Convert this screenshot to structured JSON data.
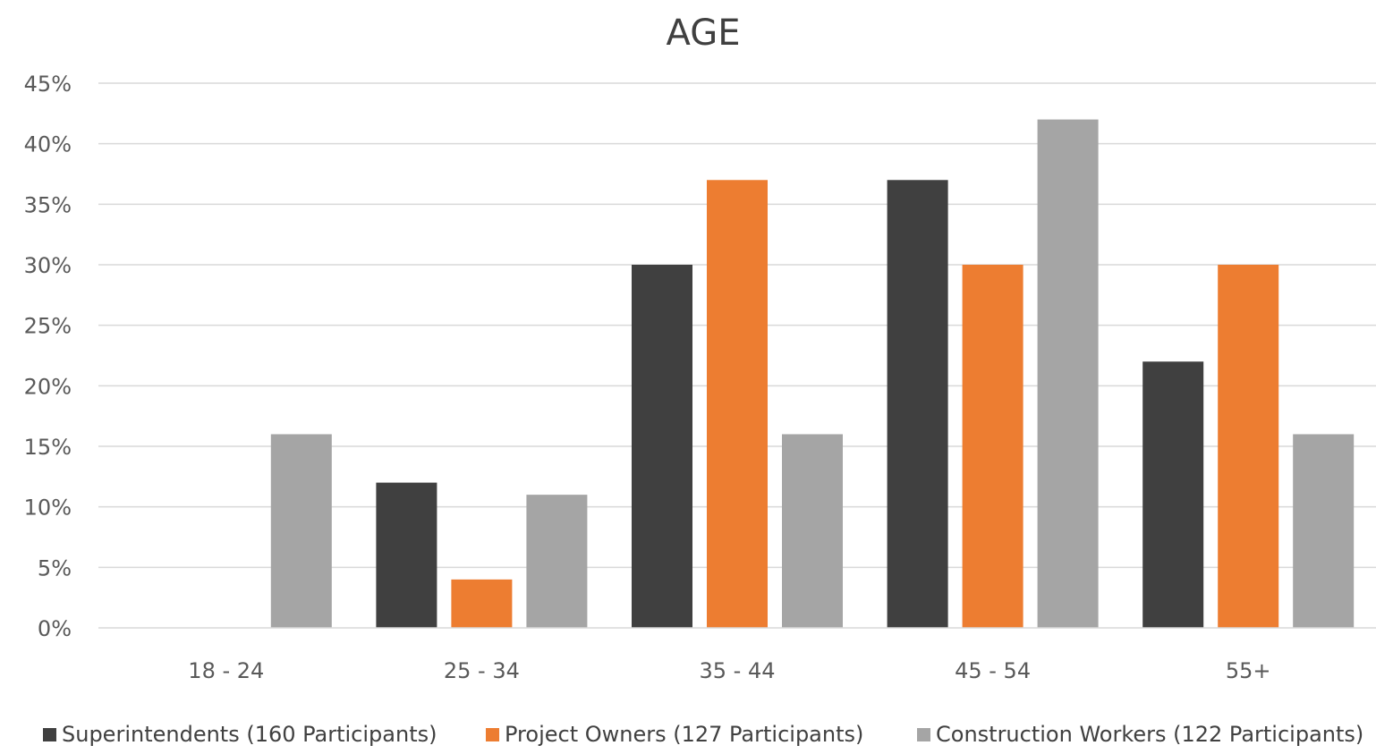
{
  "chart_data": {
    "type": "bar",
    "title": "AGE",
    "xlabel": "",
    "ylabel": "",
    "categories": [
      "18 - 24",
      "25 - 34",
      "35 - 44",
      "45 - 54",
      "55+"
    ],
    "series": [
      {
        "name": "Superintendents (160 Participants)",
        "color": "#404040",
        "values": [
          0,
          12,
          30,
          37,
          22
        ]
      },
      {
        "name": "Project Owners (127 Participants)",
        "color": "#ED7D31",
        "values": [
          0,
          4,
          37,
          30,
          30
        ]
      },
      {
        "name": "Construction Workers (122 Participants)",
        "color": "#A5A5A5",
        "values": [
          16,
          11,
          16,
          42,
          16
        ]
      }
    ],
    "ylim": [
      0,
      45
    ],
    "y_ticks": [
      "0%",
      "5%",
      "10%",
      "15%",
      "20%",
      "25%",
      "30%",
      "35%",
      "40%",
      "45%"
    ],
    "y_tick_values": [
      0,
      5,
      10,
      15,
      20,
      25,
      30,
      35,
      40,
      45
    ],
    "grid": true,
    "legend_position": "bottom"
  }
}
